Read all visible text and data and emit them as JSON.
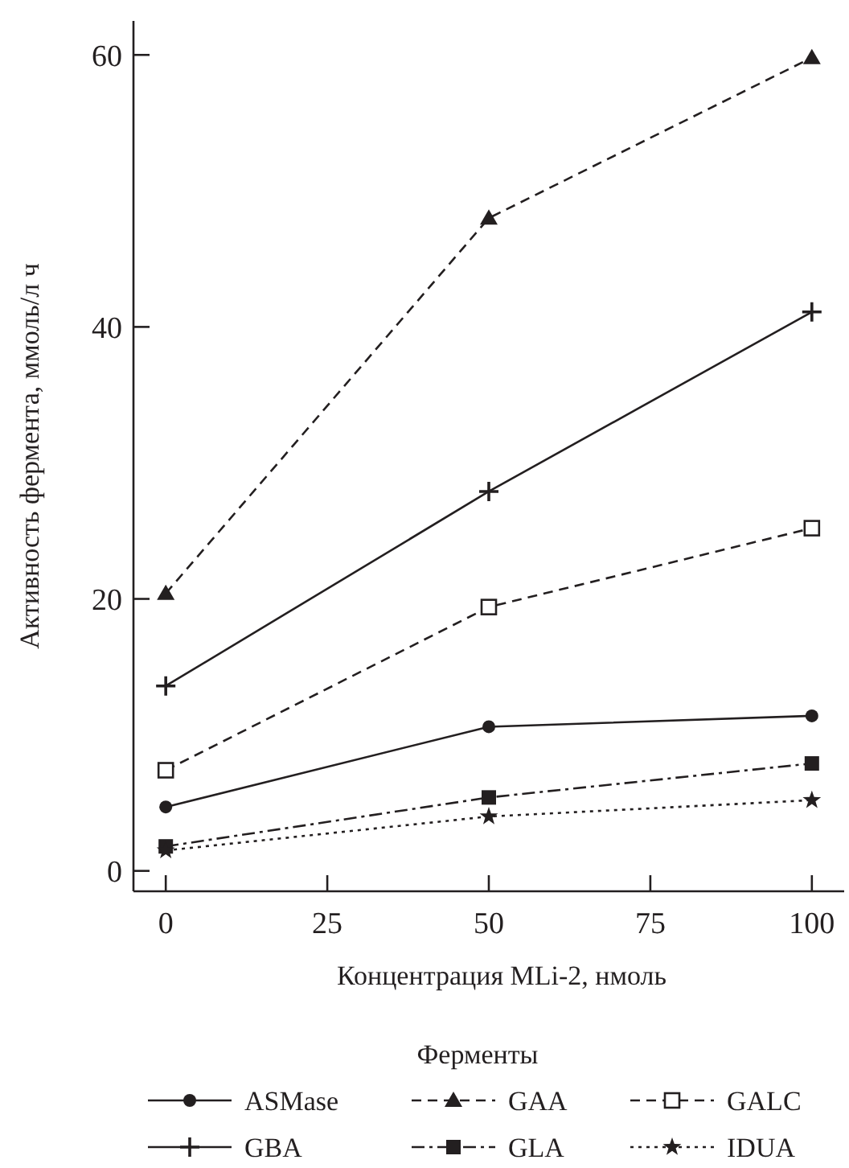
{
  "chart_data": {
    "type": "line",
    "xlabel": "Концентрация MLi-2, нмоль",
    "ylabel": "Активность фермента, ммоль/л ч",
    "legend_title": "Ферменты",
    "legend": "bottom",
    "grid": false,
    "x": [
      0,
      50,
      100
    ],
    "xlim": [
      -5,
      105
    ],
    "xticks": [
      0,
      25,
      50,
      75,
      100
    ],
    "ylim": [
      -1.5,
      62.5
    ],
    "yticks": [
      0,
      20,
      40,
      60
    ],
    "series": [
      {
        "name": "ASMase",
        "color": "#231f20",
        "values": [
          4.7,
          10.6,
          11.4
        ],
        "marker": "circle",
        "line_style": "solid"
      },
      {
        "name": "GAA",
        "color": "#231f20",
        "values": [
          20.4,
          48.0,
          59.8
        ],
        "marker": "triangle",
        "line_style": "dashed"
      },
      {
        "name": "GALC",
        "color": "#231f20",
        "values": [
          7.4,
          19.4,
          25.2
        ],
        "marker": "square_open",
        "line_style": "dashed"
      },
      {
        "name": "GBA",
        "color": "#231f20",
        "values": [
          13.6,
          27.9,
          41.1
        ],
        "marker": "cross",
        "line_style": "solid"
      },
      {
        "name": "GLA",
        "color": "#231f20",
        "values": [
          1.8,
          5.4,
          7.9
        ],
        "marker": "square",
        "line_style": "dashdot"
      },
      {
        "name": "IDUA",
        "color": "#231f20",
        "values": [
          1.5,
          4.0,
          5.2
        ],
        "marker": "star",
        "line_style": "dotted"
      }
    ]
  }
}
